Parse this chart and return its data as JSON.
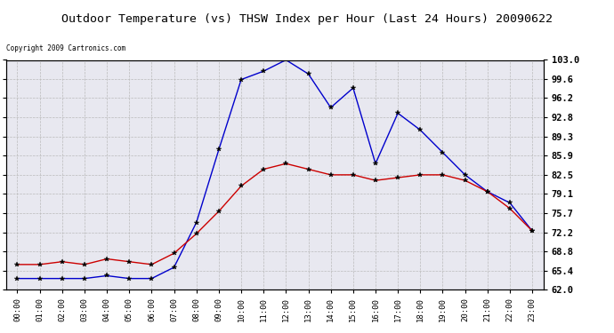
{
  "title": "Outdoor Temperature (vs) THSW Index per Hour (Last 24 Hours) 20090622",
  "copyright": "Copyright 2009 Cartronics.com",
  "hours": [
    "00:00",
    "01:00",
    "02:00",
    "03:00",
    "04:00",
    "05:00",
    "06:00",
    "07:00",
    "08:00",
    "09:00",
    "10:00",
    "11:00",
    "12:00",
    "13:00",
    "14:00",
    "15:00",
    "16:00",
    "17:00",
    "18:00",
    "19:00",
    "20:00",
    "21:00",
    "22:00",
    "23:00"
  ],
  "temp": [
    66.5,
    66.5,
    67.0,
    66.5,
    67.5,
    67.0,
    66.5,
    68.5,
    72.0,
    76.0,
    80.5,
    83.5,
    84.5,
    83.5,
    82.5,
    82.5,
    81.5,
    82.0,
    82.5,
    82.5,
    81.5,
    79.5,
    76.5,
    72.5
  ],
  "thsw": [
    64.0,
    64.0,
    64.0,
    64.0,
    64.5,
    64.0,
    64.0,
    66.0,
    74.0,
    87.0,
    99.5,
    101.0,
    103.0,
    100.5,
    94.5,
    98.0,
    84.5,
    93.5,
    90.5,
    86.5,
    82.5,
    79.5,
    77.5,
    72.5
  ],
  "ylim": [
    62.0,
    103.0
  ],
  "yticks": [
    62.0,
    65.4,
    68.8,
    72.2,
    75.7,
    79.1,
    82.5,
    85.9,
    89.3,
    92.8,
    96.2,
    99.6,
    103.0
  ],
  "temp_color": "#cc0000",
  "thsw_color": "#0000cc",
  "bg_color": "#ffffff",
  "grid_color": "#bbbbbb",
  "plot_bg": "#e8e8f0"
}
